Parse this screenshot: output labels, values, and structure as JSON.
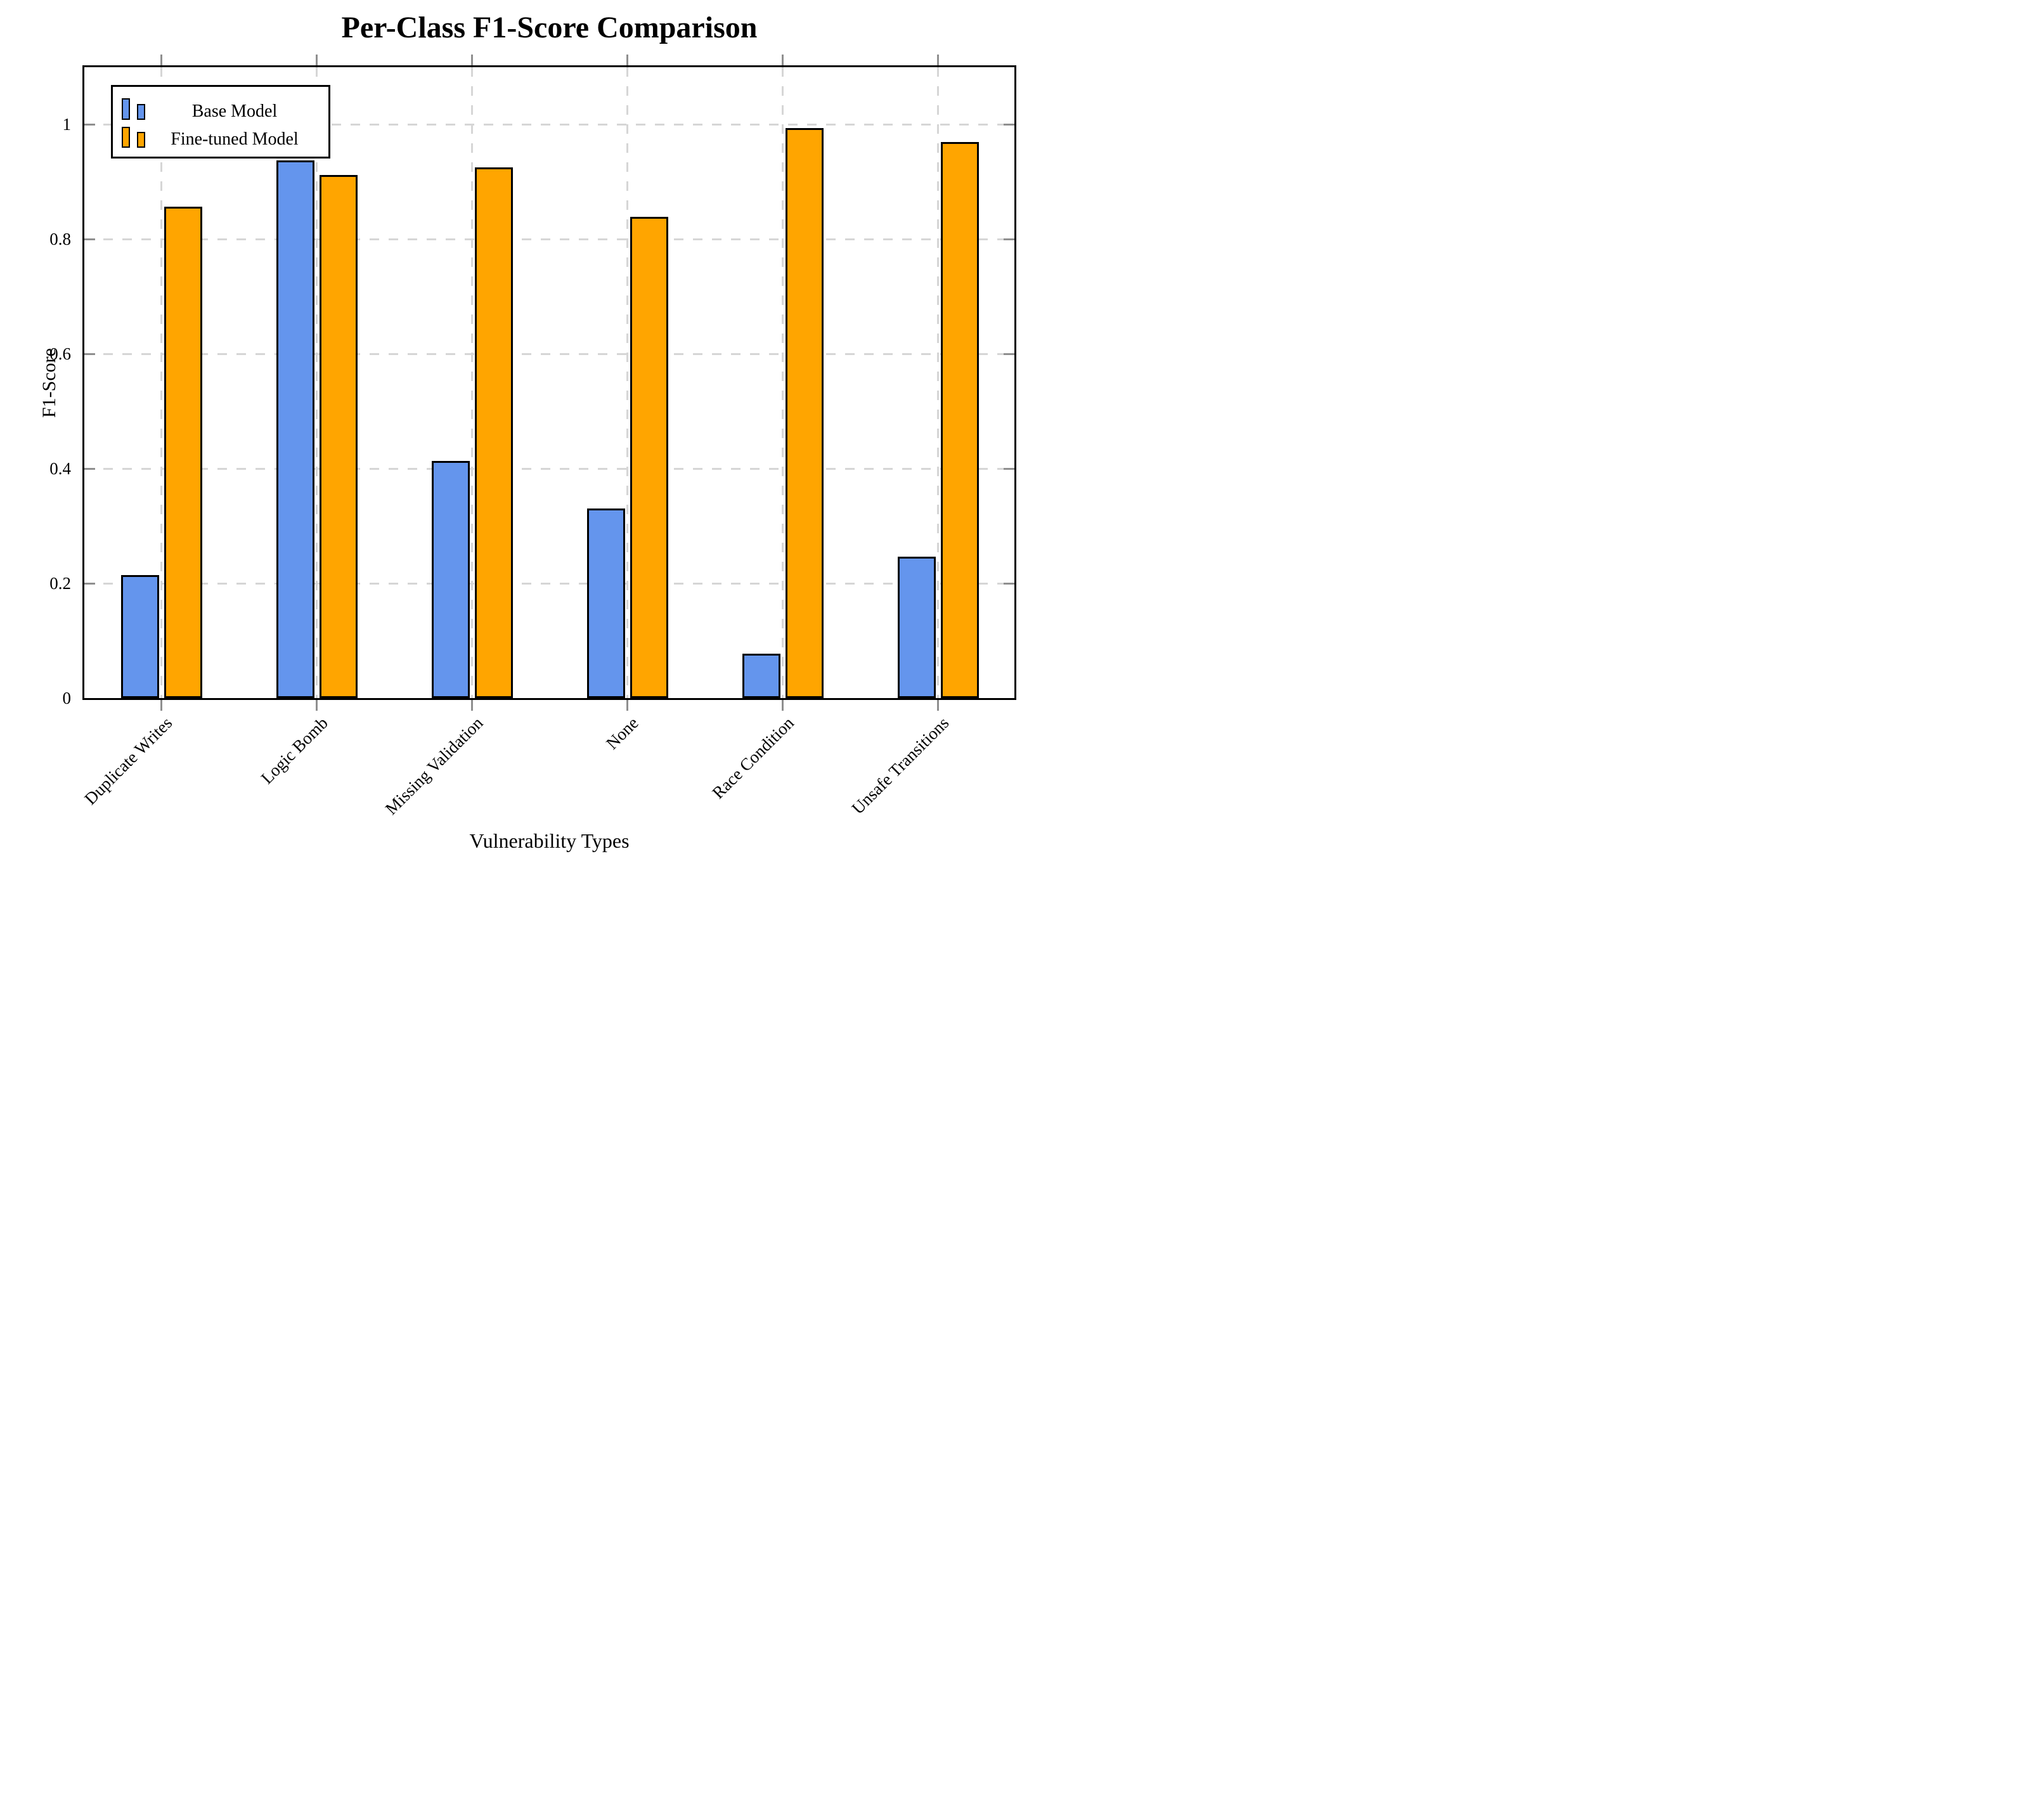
{
  "chart_data": {
    "type": "bar",
    "title": "Per-Class F1-Score Comparison",
    "xlabel": "Vulnerability Types",
    "ylabel": "F1-Score",
    "categories": [
      "Duplicate Writes",
      "Logic Bomb",
      "Missing Validation",
      "None",
      "Race Condition",
      "Unsafe Transitions"
    ],
    "series": [
      {
        "name": "Base Model",
        "color": "#6495ED",
        "values": [
          0.215,
          0.937,
          0.413,
          0.331,
          0.077,
          0.246
        ]
      },
      {
        "name": "Fine-tuned Model",
        "color": "#FFA500",
        "values": [
          0.857,
          0.912,
          0.925,
          0.839,
          0.994,
          0.97
        ]
      }
    ],
    "ylim": [
      0,
      1.1
    ],
    "yticks": [
      0,
      0.2,
      0.4,
      0.6,
      0.8,
      1
    ],
    "ytick_labels": [
      "0",
      "0.2",
      "0.4",
      "0.6",
      "0.8",
      "1"
    ],
    "grid": "dashed-both-axes",
    "legend_position": "upper-left",
    "colors": {
      "grid": "#d6d6d6",
      "tick": "#8f8f8f",
      "axis": "#000000",
      "background": "#ffffff"
    }
  }
}
